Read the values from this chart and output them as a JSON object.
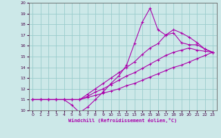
{
  "xlabel": "Windchill (Refroidissement éolien,°C)",
  "ylabel": "",
  "xlim": [
    -0.5,
    23.5
  ],
  "ylim": [
    10,
    20
  ],
  "xticks": [
    0,
    1,
    2,
    3,
    4,
    5,
    6,
    7,
    8,
    9,
    10,
    11,
    12,
    13,
    14,
    15,
    16,
    17,
    18,
    19,
    20,
    21,
    22,
    23
  ],
  "yticks": [
    10,
    11,
    12,
    13,
    14,
    15,
    16,
    17,
    18,
    19,
    20
  ],
  "bg_color": "#cce8e8",
  "grid_color": "#99cccc",
  "line_color": "#aa00aa",
  "series": [
    {
      "x": [
        0,
        1,
        2,
        3,
        4,
        5,
        6,
        7,
        8,
        9,
        10,
        11,
        12,
        13,
        14,
        15,
        16,
        17,
        18,
        19,
        20,
        21,
        22,
        23
      ],
      "y": [
        11,
        11,
        11,
        11,
        11,
        11,
        11,
        11.2,
        11.4,
        11.6,
        11.8,
        12,
        12.3,
        12.5,
        12.8,
        13.1,
        13.4,
        13.7,
        14,
        14.2,
        14.5,
        14.8,
        15.1,
        15.4
      ]
    },
    {
      "x": [
        0,
        1,
        2,
        3,
        4,
        5,
        6,
        7,
        8,
        9,
        10,
        11,
        12,
        13,
        14,
        15,
        16,
        17,
        18,
        19,
        20,
        21,
        22,
        23
      ],
      "y": [
        11,
        11,
        11,
        11,
        11,
        11,
        11,
        11.3,
        11.7,
        12,
        12.4,
        12.8,
        13.2,
        13.5,
        13.9,
        14.3,
        14.7,
        15.1,
        15.4,
        15.6,
        15.8,
        15.6,
        15.5,
        15.4
      ]
    },
    {
      "x": [
        0,
        1,
        2,
        3,
        4,
        5,
        6,
        7,
        8,
        9,
        10,
        11,
        12,
        13,
        14,
        15,
        16,
        17,
        18,
        19,
        20,
        21,
        22,
        23
      ],
      "y": [
        11,
        11,
        11,
        11,
        11,
        11,
        11,
        11.5,
        12,
        12.5,
        13,
        13.5,
        14,
        14.5,
        15.2,
        15.8,
        16.2,
        17,
        17.5,
        17.2,
        16.8,
        16.3,
        15.7,
        15.4
      ]
    },
    {
      "x": [
        0,
        1,
        2,
        3,
        4,
        5,
        6,
        7,
        8,
        9,
        10,
        11,
        12,
        13,
        14,
        15,
        16,
        17,
        18,
        19,
        20,
        21,
        22,
        23
      ],
      "y": [
        11,
        11,
        11,
        11,
        11,
        10.5,
        9.8,
        10.3,
        11,
        11.7,
        12.5,
        13.2,
        14.2,
        16.2,
        18.2,
        19.5,
        17.5,
        17,
        17.2,
        16.3,
        16.1,
        16.1,
        15.7,
        15.4
      ]
    }
  ]
}
